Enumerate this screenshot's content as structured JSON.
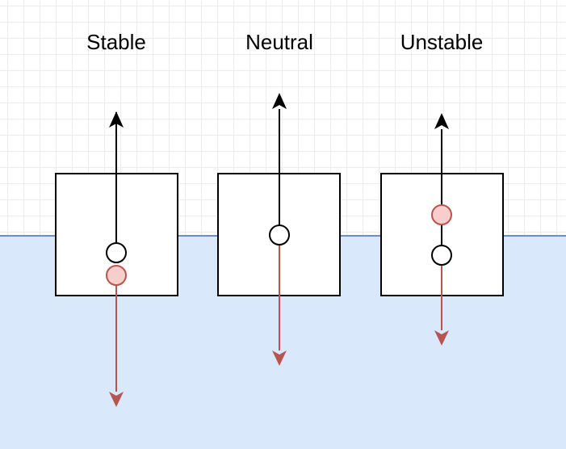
{
  "labels": {
    "stable": "Stable",
    "neutral": "Neutral",
    "unstable": "Unstable"
  },
  "colors": {
    "water_fill": "#dae8fc",
    "water_line": "#6c8ebf",
    "buoyancy_arrow": "#000000",
    "gravity_arrow": "#b85450",
    "center_of_gravity_fill": "#f8cecc",
    "center_of_gravity_stroke": "#b85450"
  }
}
